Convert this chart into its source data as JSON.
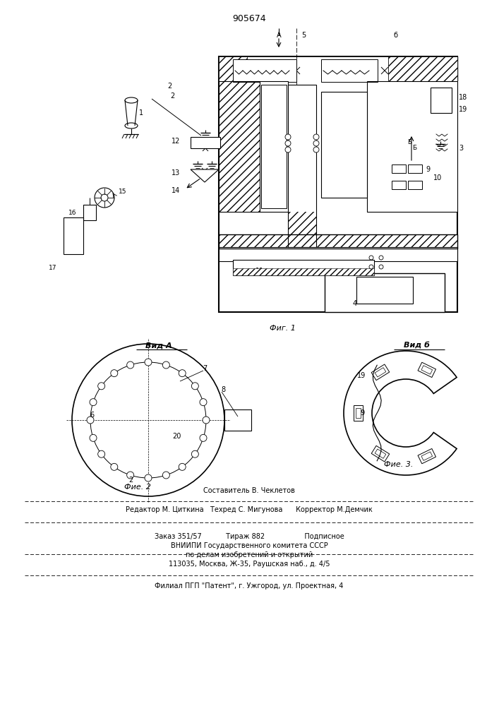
{
  "patent_number": "905674",
  "fig1_caption": "Фиг. 1",
  "fig2_caption": "Фие. 2",
  "fig3_caption": "Фие. 3.",
  "vida_label": "Вид А",
  "vidb_label": "Вид б",
  "footer_line1": "Составитель В. Чеклетов",
  "footer_line2": "Редактор М. Циткина   Техред С. Мигунова      Корректор М.Демчик",
  "footer_line3": "Заказ 351/57           Тираж 882                  Подписное",
  "footer_line4": "ВНИИПИ Государственного комитета СССР",
  "footer_line5": "по делам изобретений и открытий",
  "footer_line6": "113035, Москва, Ж-35, Раушская наб., д. 4/5",
  "footer_line7": "Филиал ПГП \"Патент\", г. Ужгород, ул. Проектная, 4",
  "bg_color": "#ffffff"
}
